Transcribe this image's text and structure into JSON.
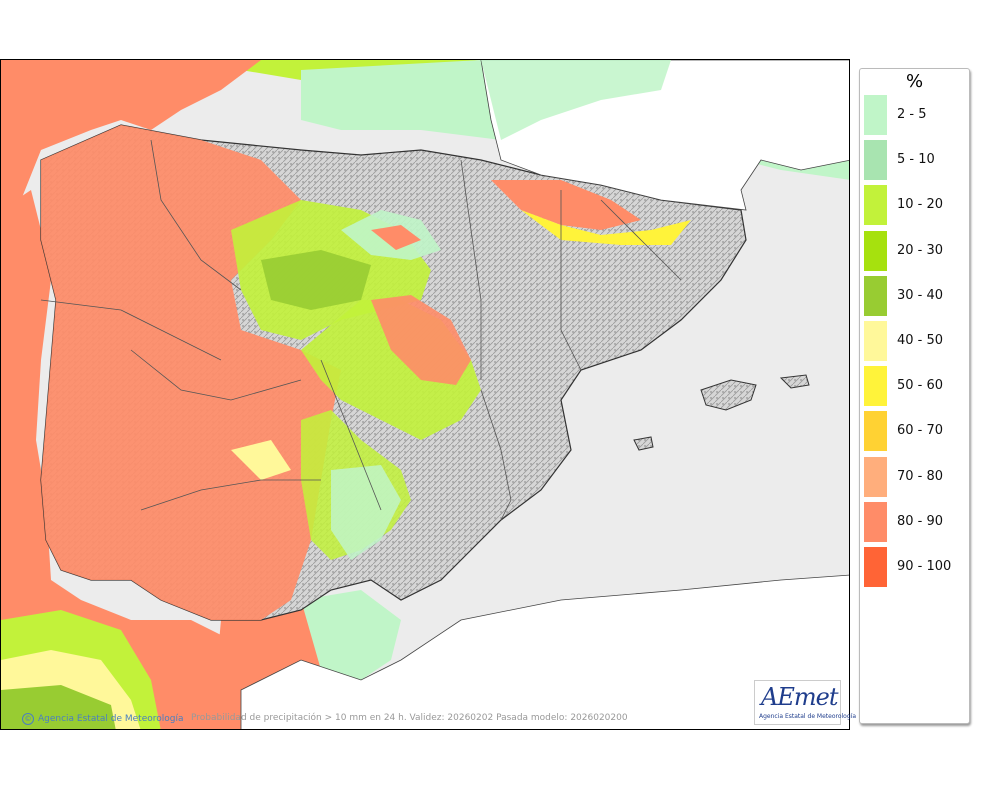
{
  "map": {
    "credit": "Agencia Estatal de Meteorología",
    "credit_symbol": "©",
    "caption": "Probabilidad de precipitación > 10 mm en 24 h. Validez: 20260202 Pasada modelo: 2026020200",
    "logo_text": "AEmet",
    "logo_subtitle": "Agencia Estatal de Meteorología"
  },
  "legend": {
    "unit": "%",
    "classes": [
      {
        "label": "2 - 5",
        "color": "#c0f5c8"
      },
      {
        "label": "5 - 10",
        "color": "#a8e4b0"
      },
      {
        "label": "10 - 20",
        "color": "#c2f23a"
      },
      {
        "label": "20 - 30",
        "color": "#a6e10e"
      },
      {
        "label": "30 - 40",
        "color": "#98cc32"
      },
      {
        "label": "40 - 50",
        "color": "#fff89a"
      },
      {
        "label": "50 - 60",
        "color": "#fff33a"
      },
      {
        "label": "60 - 70",
        "color": "#ffd233"
      },
      {
        "label": "70 - 80",
        "color": "#ffae7c"
      },
      {
        "label": "80 - 90",
        "color": "#ff8c68"
      },
      {
        "label": "90 - 100",
        "color": "#ff6436"
      }
    ]
  }
}
